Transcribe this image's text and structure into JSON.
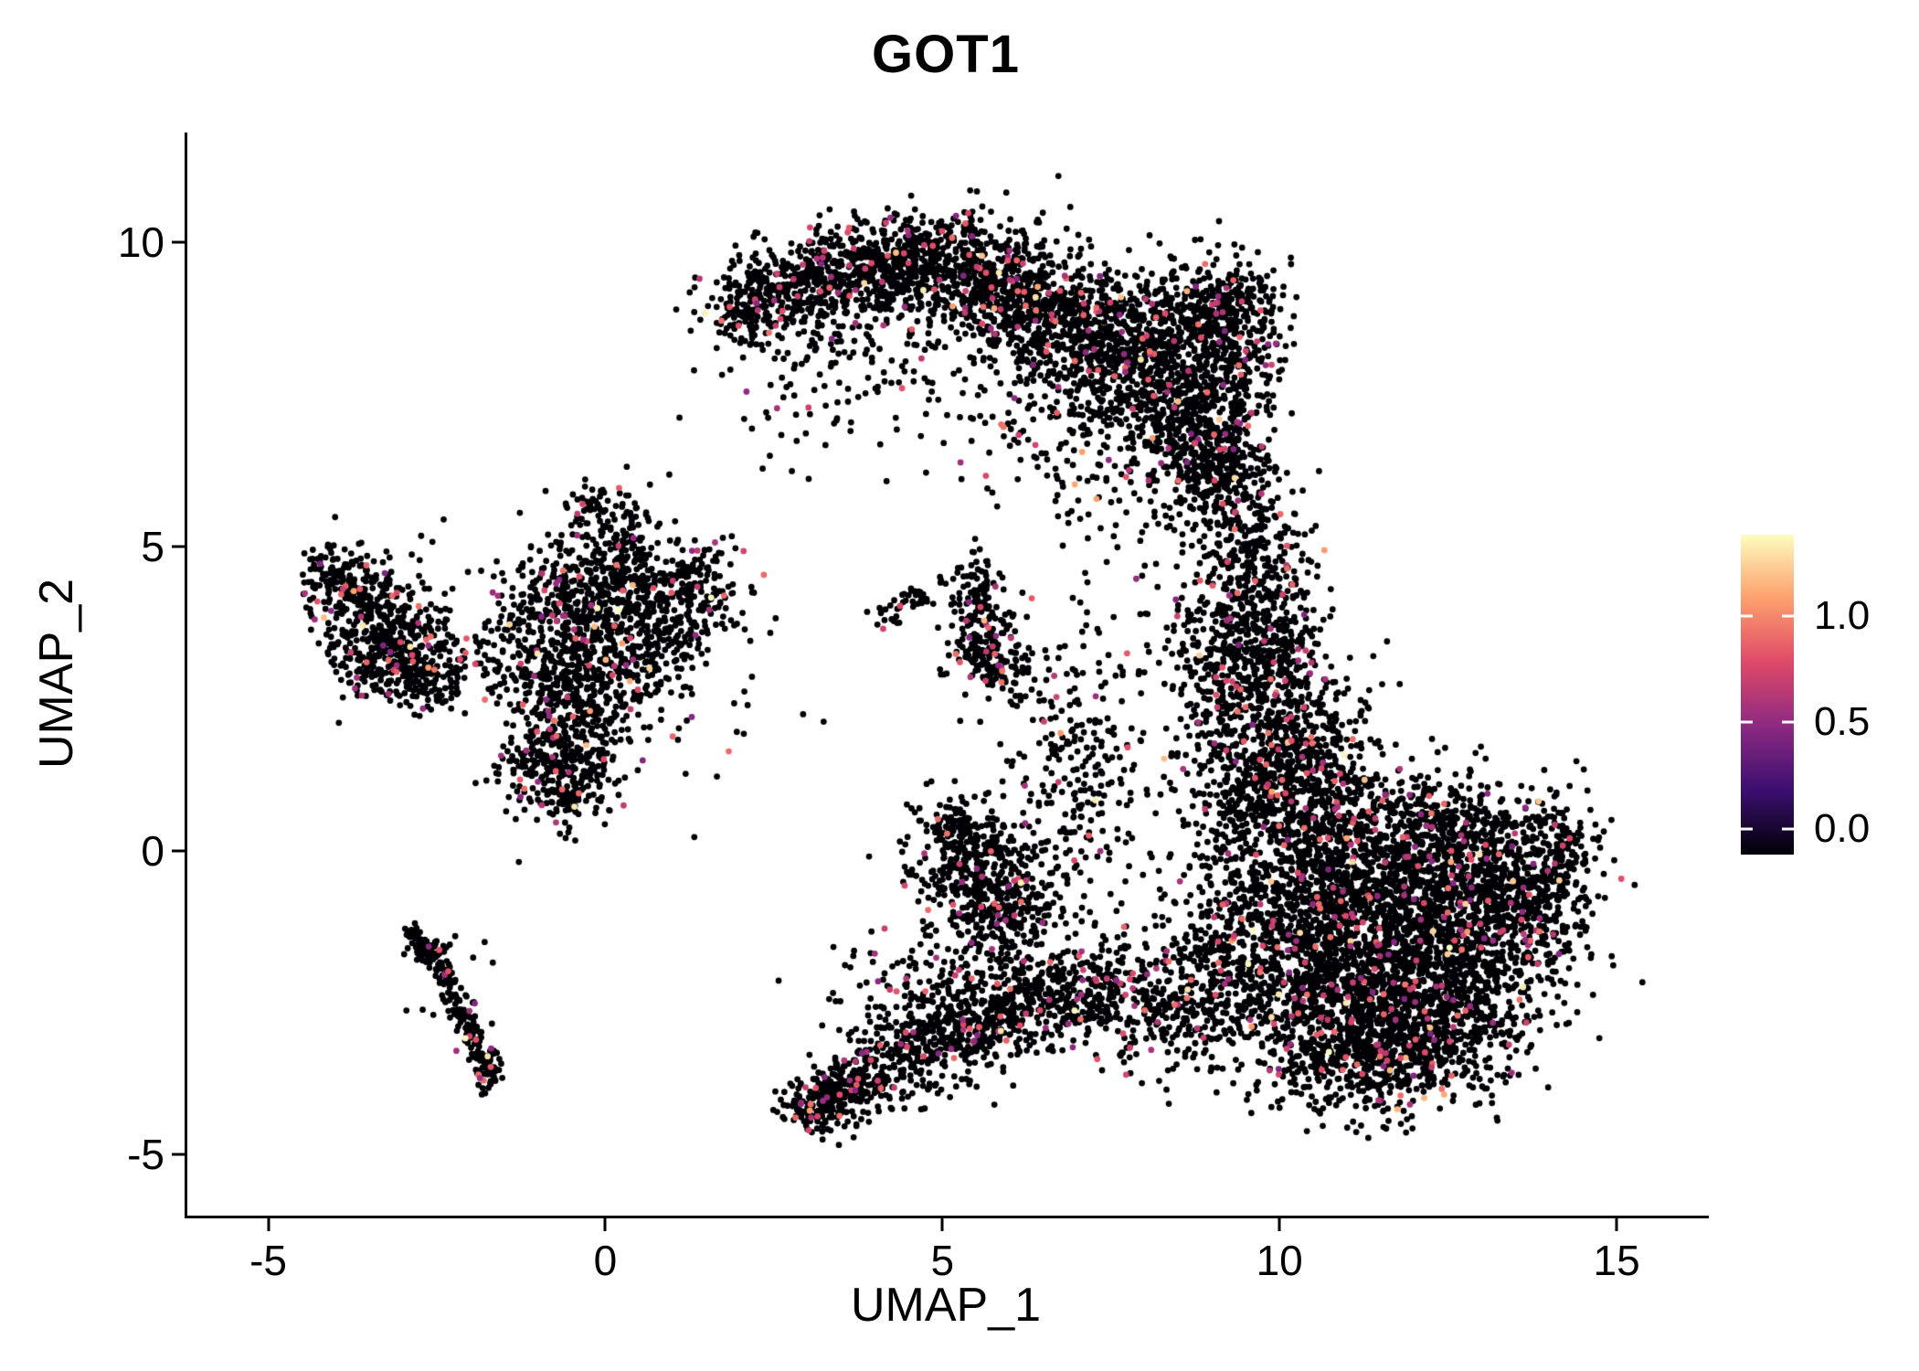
{
  "chart_data": {
    "type": "scatter",
    "title": "GOT1",
    "xlabel": "UMAP_1",
    "ylabel": "UMAP_2",
    "xlim": [
      -6.2,
      16.3
    ],
    "ylim": [
      -6.0,
      11.8
    ],
    "grid": false,
    "legend_position": "right",
    "xticks": [
      {
        "value": -5,
        "label": "-5"
      },
      {
        "value": 0,
        "label": "0"
      },
      {
        "value": 5,
        "label": "5"
      },
      {
        "value": 10,
        "label": "10"
      },
      {
        "value": 15,
        "label": "15"
      }
    ],
    "yticks": [
      {
        "value": -5,
        "label": "-5"
      },
      {
        "value": 0,
        "label": "0"
      },
      {
        "value": 5,
        "label": "5"
      },
      {
        "value": 10,
        "label": "10"
      }
    ],
    "colorbar": {
      "range": [
        -0.12,
        1.38
      ],
      "ticks": [
        {
          "value": 0.0,
          "label": "0.0"
        },
        {
          "value": 0.5,
          "label": "0.5"
        },
        {
          "value": 1.0,
          "label": "1.0"
        }
      ]
    },
    "colormap": [
      [
        0,
        "#000004"
      ],
      [
        0.2,
        "#3b0f70"
      ],
      [
        0.4,
        "#8c2981"
      ],
      [
        0.6,
        "#de4968"
      ],
      [
        0.8,
        "#fe9f6d"
      ],
      [
        1,
        "#fcfdbf"
      ]
    ],
    "value_range": [
      0,
      1.35
    ],
    "point_radius": 3.4,
    "seed": 42,
    "expression_model": {
      "p_zero": 0.945,
      "p_mid": 0.05,
      "mid_range": [
        0.5,
        0.95
      ],
      "high_range": [
        1.05,
        1.35
      ]
    },
    "clusters": [
      [
        2.0,
        8.9,
        0.35,
        0.3,
        120
      ],
      [
        2.7,
        9.2,
        0.4,
        0.35,
        180
      ],
      [
        3.5,
        9.5,
        0.5,
        0.4,
        260
      ],
      [
        4.4,
        9.7,
        0.5,
        0.4,
        300
      ],
      [
        5.3,
        9.6,
        0.5,
        0.45,
        320
      ],
      [
        6.1,
        9.2,
        0.5,
        0.5,
        320
      ],
      [
        6.9,
        8.7,
        0.55,
        0.55,
        330
      ],
      [
        7.6,
        8.1,
        0.6,
        0.6,
        340
      ],
      [
        8.3,
        7.5,
        0.6,
        0.6,
        330
      ],
      [
        8.9,
        6.8,
        0.5,
        0.55,
        280
      ],
      [
        9.2,
        6.1,
        0.4,
        0.5,
        200
      ],
      [
        8.6,
        8.9,
        0.5,
        0.5,
        240
      ],
      [
        9.3,
        8.0,
        0.4,
        0.6,
        200
      ],
      [
        9.4,
        9.0,
        0.35,
        0.4,
        150
      ],
      [
        5.5,
        7.9,
        1.2,
        0.8,
        120
      ],
      [
        4.0,
        8.6,
        0.9,
        0.6,
        100
      ],
      [
        3.0,
        7.7,
        0.8,
        0.8,
        60
      ],
      [
        6.5,
        6.8,
        0.8,
        0.7,
        80
      ],
      [
        8.0,
        5.6,
        0.8,
        0.7,
        70
      ],
      [
        9.5,
        4.9,
        0.5,
        0.6,
        180
      ],
      [
        9.6,
        4.0,
        0.5,
        0.6,
        200
      ],
      [
        9.7,
        3.2,
        0.5,
        0.5,
        200
      ],
      [
        9.9,
        2.4,
        0.6,
        0.5,
        220
      ],
      [
        10.1,
        1.7,
        0.7,
        0.5,
        240
      ],
      [
        9.0,
        3.0,
        0.5,
        0.9,
        150
      ],
      [
        9.6,
        0.8,
        0.5,
        0.5,
        150
      ],
      [
        10.3,
        1.2,
        0.6,
        0.4,
        150
      ],
      [
        10.6,
        0.3,
        0.9,
        0.7,
        350
      ],
      [
        11.5,
        0.2,
        0.9,
        0.6,
        330
      ],
      [
        12.5,
        0.0,
        0.8,
        0.6,
        300
      ],
      [
        13.3,
        -0.3,
        0.6,
        0.5,
        220
      ],
      [
        10.4,
        -0.8,
        0.9,
        0.7,
        380
      ],
      [
        11.4,
        -1.0,
        0.9,
        0.7,
        400
      ],
      [
        12.4,
        -1.2,
        0.8,
        0.7,
        380
      ],
      [
        13.3,
        -1.3,
        0.6,
        0.6,
        260
      ],
      [
        10.6,
        -2.0,
        0.9,
        0.7,
        380
      ],
      [
        11.6,
        -2.2,
        0.9,
        0.7,
        400
      ],
      [
        12.6,
        -2.4,
        0.8,
        0.6,
        340
      ],
      [
        11.0,
        -3.0,
        0.8,
        0.5,
        300
      ],
      [
        12.0,
        -3.2,
        0.8,
        0.5,
        280
      ],
      [
        11.3,
        -3.7,
        0.7,
        0.4,
        180
      ],
      [
        13.9,
        -0.8,
        0.4,
        0.5,
        120
      ],
      [
        14.2,
        0.2,
        0.3,
        0.5,
        90
      ],
      [
        9.3,
        -1.5,
        0.6,
        0.8,
        220
      ],
      [
        9.0,
        -2.5,
        0.5,
        0.6,
        160
      ],
      [
        8.3,
        -2.6,
        0.6,
        0.5,
        150
      ],
      [
        7.6,
        -2.4,
        0.5,
        0.5,
        130
      ],
      [
        7.0,
        -2.3,
        0.5,
        0.4,
        110
      ],
      [
        3.2,
        -4.15,
        0.3,
        0.2,
        200
      ],
      [
        3.7,
        -3.8,
        0.3,
        0.2,
        120
      ],
      [
        4.3,
        -3.4,
        0.5,
        0.4,
        180
      ],
      [
        5.0,
        -3.0,
        0.5,
        0.4,
        180
      ],
      [
        5.7,
        -2.7,
        0.5,
        0.4,
        170
      ],
      [
        6.3,
        -2.5,
        0.5,
        0.35,
        150
      ],
      [
        4.6,
        -2.3,
        0.7,
        0.5,
        70
      ],
      [
        5.1,
        -1.9,
        0.4,
        0.4,
        40
      ],
      [
        5.4,
        -0.3,
        0.45,
        0.5,
        260
      ],
      [
        5.9,
        -0.8,
        0.4,
        0.4,
        150
      ],
      [
        5.2,
        0.4,
        0.3,
        0.3,
        90
      ],
      [
        5.8,
        -1.6,
        0.4,
        0.5,
        80
      ],
      [
        6.5,
        -0.5,
        0.5,
        0.6,
        60
      ],
      [
        6.8,
        0.5,
        0.6,
        0.8,
        80
      ],
      [
        7.0,
        1.2,
        0.7,
        0.9,
        70
      ],
      [
        6.8,
        2.8,
        0.5,
        0.8,
        50
      ],
      [
        7.3,
        2.0,
        0.5,
        0.8,
        60
      ],
      [
        5.5,
        4.4,
        0.25,
        0.25,
        60
      ],
      [
        5.6,
        3.6,
        0.25,
        0.4,
        120
      ],
      [
        5.8,
        3.0,
        0.3,
        0.3,
        110
      ],
      [
        4.6,
        4.1,
        0.15,
        0.15,
        25
      ],
      [
        4.2,
        3.9,
        0.12,
        0.12,
        15
      ],
      [
        0.0,
        4.6,
        0.5,
        0.45,
        160
      ],
      [
        -0.6,
        4.2,
        0.5,
        0.4,
        140
      ],
      [
        0.7,
        4.3,
        0.5,
        0.35,
        130
      ],
      [
        -0.2,
        3.6,
        0.6,
        0.4,
        160
      ],
      [
        -0.7,
        2.9,
        0.5,
        0.5,
        180
      ],
      [
        0.2,
        2.9,
        0.5,
        0.4,
        160
      ],
      [
        -0.5,
        2.1,
        0.4,
        0.4,
        150
      ],
      [
        -0.9,
        1.4,
        0.35,
        0.4,
        130
      ],
      [
        -0.3,
        1.2,
        0.3,
        0.3,
        90
      ],
      [
        0.9,
        3.4,
        0.4,
        0.3,
        80
      ],
      [
        1.3,
        4.0,
        0.35,
        0.35,
        60
      ],
      [
        -1.3,
        3.3,
        0.3,
        0.4,
        70
      ],
      [
        0.3,
        5.3,
        0.3,
        0.35,
        60
      ],
      [
        -0.2,
        5.7,
        0.25,
        0.25,
        40
      ],
      [
        1.5,
        4.6,
        0.4,
        0.3,
        50
      ],
      [
        0.2,
        3.2,
        1.1,
        1.3,
        120
      ],
      [
        -0.6,
        0.9,
        0.2,
        0.3,
        50
      ],
      [
        -3.9,
        4.4,
        0.3,
        0.3,
        90
      ],
      [
        -3.6,
        4.0,
        0.35,
        0.35,
        110
      ],
      [
        -3.1,
        3.6,
        0.4,
        0.4,
        130
      ],
      [
        -2.8,
        3.1,
        0.4,
        0.35,
        130
      ],
      [
        -3.4,
        3.1,
        0.35,
        0.3,
        100
      ],
      [
        -2.5,
        2.8,
        0.3,
        0.25,
        70
      ],
      [
        -4.1,
        4.6,
        0.2,
        0.2,
        40
      ],
      [
        -3.2,
        3.7,
        0.7,
        0.7,
        60
      ],
      [
        -2.6,
        -1.6,
        0.15,
        0.15,
        30
      ],
      [
        -1.75,
        -3.55,
        0.12,
        0.2,
        40
      ],
      [
        -2.2,
        -2.5,
        0.3,
        0.5,
        25
      ]
    ],
    "streaks": [
      [
        -2.9,
        -1.35,
        -2.35,
        -2.1,
        0.08,
        70
      ],
      [
        -2.35,
        -2.1,
        -1.7,
        -3.75,
        0.08,
        110
      ]
    ]
  }
}
